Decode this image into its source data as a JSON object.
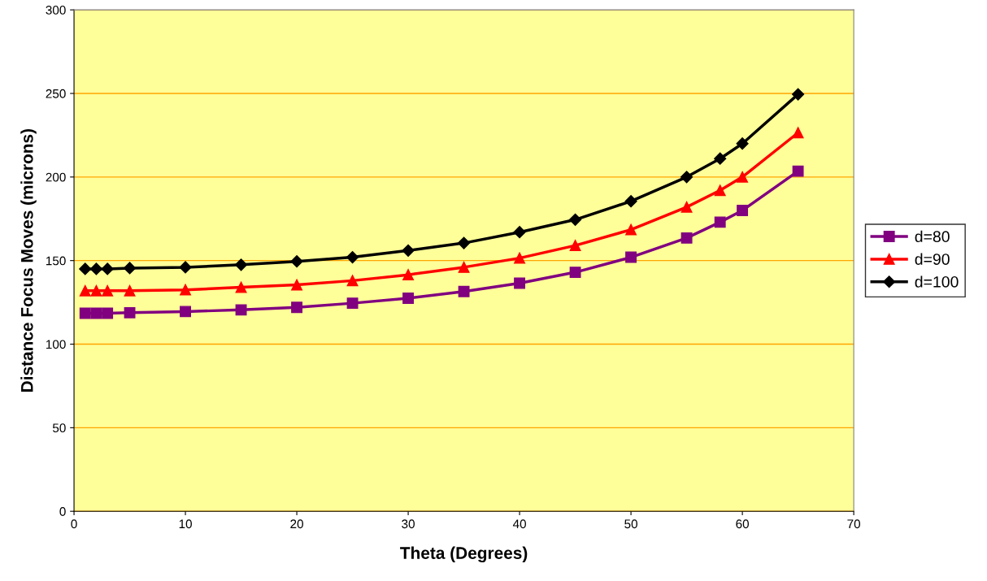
{
  "chart_data": {
    "type": "line",
    "xlabel": "Theta (Degrees)",
    "ylabel": "Distance Focus Moves (microns)",
    "x": [
      1,
      2,
      3,
      5,
      10,
      15,
      20,
      25,
      30,
      35,
      40,
      45,
      50,
      55,
      58,
      60,
      65
    ],
    "xlim": [
      0,
      70
    ],
    "xticks": [
      0,
      10,
      20,
      30,
      40,
      50,
      60,
      70
    ],
    "ylim": [
      0,
      300
    ],
    "yticks": [
      0,
      50,
      100,
      150,
      200,
      250,
      300
    ],
    "grid": "y",
    "legend": "right",
    "line_style": "solid",
    "series": [
      {
        "name": "d=80",
        "color": "#800080",
        "marker": "square",
        "values": [
          118.5,
          118.5,
          118.5,
          118.8,
          119.5,
          120.5,
          122,
          124.5,
          127.5,
          131.5,
          136.5,
          143,
          152,
          163.5,
          173,
          180,
          203.5
        ]
      },
      {
        "name": "d=90",
        "color": "#ff0000",
        "marker": "triangle",
        "values": [
          132,
          132,
          132,
          132,
          132.5,
          134,
          135.5,
          138,
          141.5,
          146,
          151.5,
          159,
          168.5,
          182,
          192,
          200,
          226.5
        ]
      },
      {
        "name": "d=100",
        "color": "#000000",
        "marker": "diamond",
        "values": [
          145,
          145,
          145,
          145.5,
          146,
          147.5,
          149.5,
          152,
          156,
          160.5,
          167,
          174.5,
          185.5,
          200,
          211,
          220,
          249.5
        ]
      }
    ]
  }
}
